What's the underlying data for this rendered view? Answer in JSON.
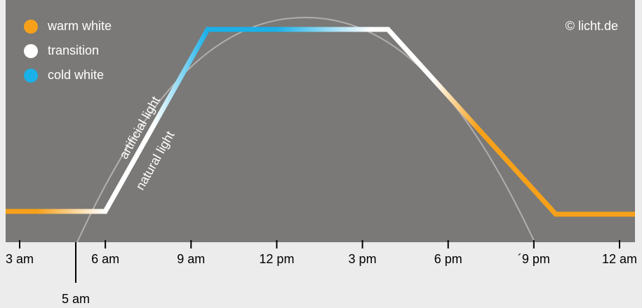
{
  "legend": {
    "items": [
      "warm white",
      "transition",
      "cold white"
    ]
  },
  "credit": "© licht.de",
  "curves": {
    "artificial": "artificial light",
    "natural": "natural light"
  },
  "axis": {
    "ticks": [
      "3 am",
      "6 am",
      "9 am",
      "12 pm",
      "3 pm",
      "6 pm",
      "´9 pm",
      "12 am"
    ],
    "marker": "5 am"
  }
}
